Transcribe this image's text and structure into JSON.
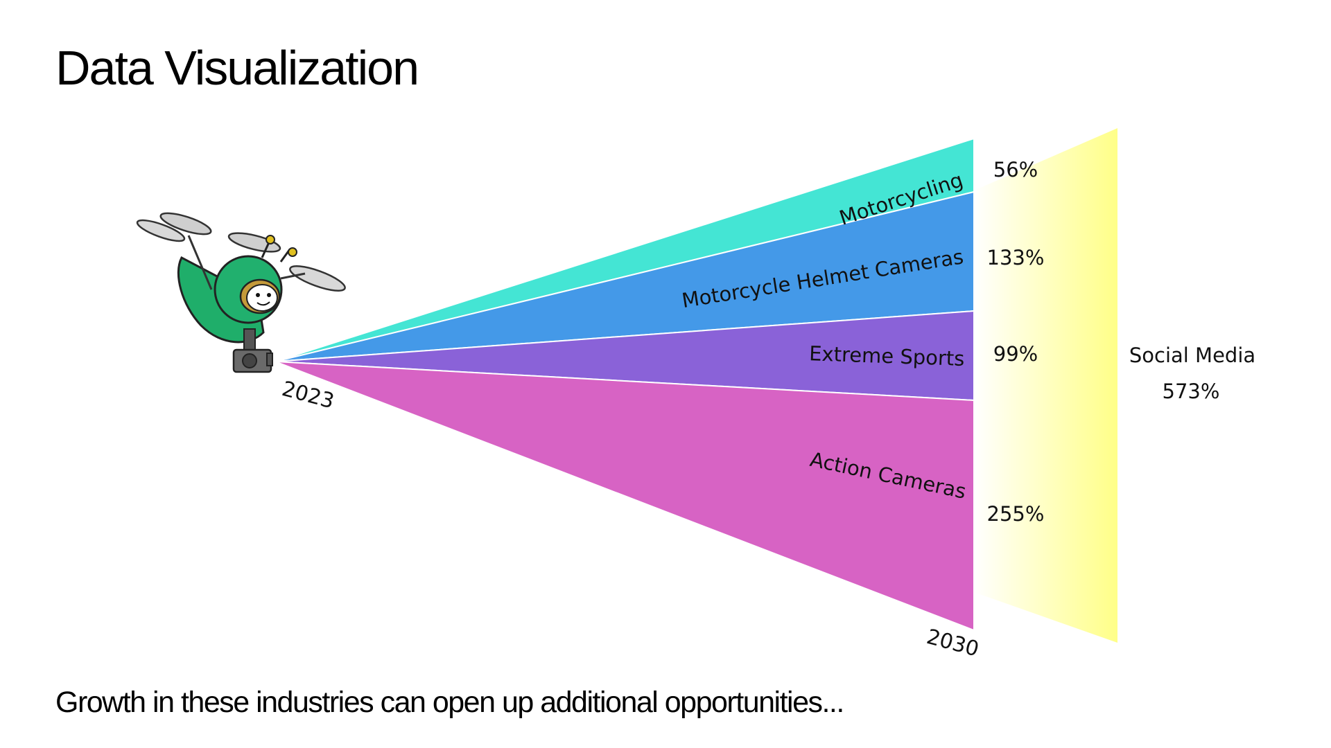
{
  "slide": {
    "title": "Data Visualization",
    "caption": "Growth in these industries can open up additional opportunities..."
  },
  "chart_data": {
    "type": "bar",
    "title": "",
    "x_start_label": "2023",
    "x_end_label": "2030",
    "series": [
      {
        "name": "Motorcycling",
        "value_label": "56%",
        "value": 56,
        "color": "#44e5d4"
      },
      {
        "name": "Motorcycle Helmet Cameras",
        "value_label": "133%",
        "value": 133,
        "color": "#4499e8"
      },
      {
        "name": "Extreme Sports",
        "value_label": "99%",
        "value": 99,
        "color": "#8a62d8"
      },
      {
        "name": "Action Cameras",
        "value_label": "255%",
        "value": 255,
        "color": "#d763c4"
      }
    ],
    "summary": {
      "name": "Social Media",
      "value_label": "573%",
      "value": 573,
      "color": "#ffff99"
    }
  },
  "mascot": {
    "icon": "drone-helmet-mascot-icon"
  }
}
